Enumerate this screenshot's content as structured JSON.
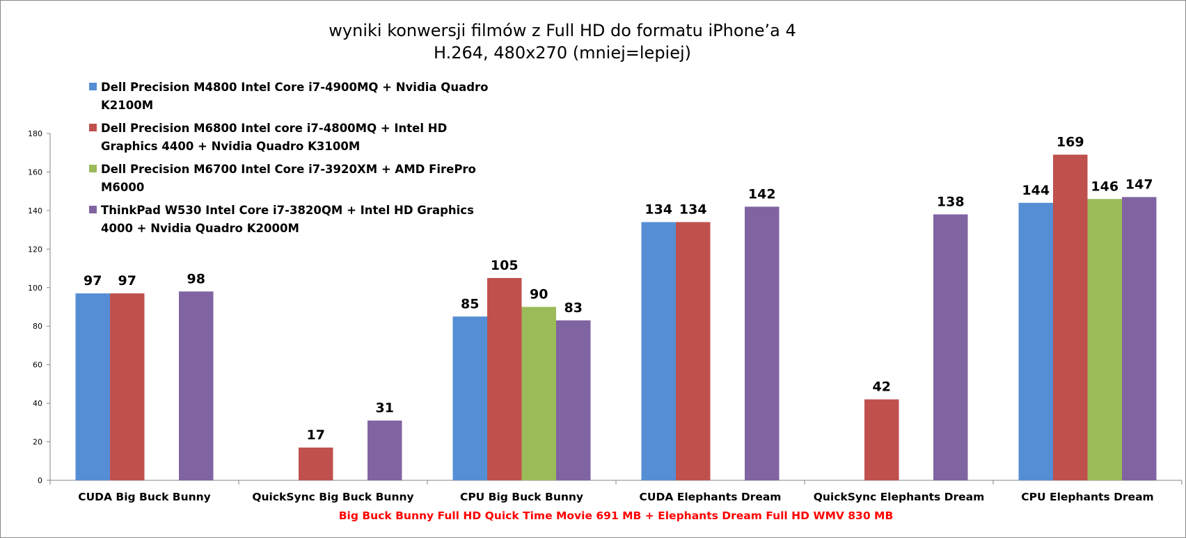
{
  "chart_data": {
    "type": "bar",
    "title": "wyniki konwersji filmów z Full HD do formatu iPhone’a 4",
    "subtitle": "H.264, 480x270 (mniej=lepiej)",
    "categories": [
      "CUDA Big Buck Bunny",
      "QuickSync Big Buck Bunny",
      "CPU Big Buck Bunny",
      "CUDA Elephants Dream",
      "QuickSync Elephants Dream",
      "CPU Elephants Dream"
    ],
    "series": [
      {
        "name": "Dell Precision M4800 Intel Core i7-4900MQ + Nvidia Quadro K2100M",
        "legend_lines": [
          "Dell Precision  M4800 Intel Core i7-4900MQ + Nvidia  Quadro",
          "K2100M"
        ],
        "color": "#558ed5",
        "values": [
          97,
          null,
          85,
          134,
          null,
          144
        ]
      },
      {
        "name": "Dell Precision M6800 Intel core i7-4800MQ + Intel HD Graphics 4400 + Nvidia Quadro K3100M",
        "legend_lines": [
          "Dell Precision  M6800 Intel core i7-4800MQ + Intel HD",
          "Graphics 4400 + Nvidia  Quadro  K3100M"
        ],
        "color": "#c0504d",
        "values": [
          97,
          17,
          105,
          134,
          42,
          169
        ]
      },
      {
        "name": "Dell Precision M6700 Intel Core i7-3920XM + AMD FirePro M6000",
        "legend_lines": [
          "Dell Precision  M6700 Intel Core i7-3920XM + AMD  FirePro",
          "M6000"
        ],
        "color": "#9bbb59",
        "values": [
          null,
          null,
          90,
          null,
          null,
          146
        ]
      },
      {
        "name": "ThinkPad W530 Intel Core i7-3820QM + Intel HD Graphics 4000 + Nvidia Quadro K2000M",
        "legend_lines": [
          "ThinkPad  W530 Intel Core i7-3820QM + Intel HD Graphics",
          "4000 + Nvidia  Quadro  K2000M"
        ],
        "color": "#8064a2",
        "values": [
          98,
          31,
          83,
          142,
          138,
          147
        ]
      }
    ],
    "ylim": [
      0,
      180
    ],
    "yticks": [
      "0",
      "20",
      "40",
      "60",
      "80",
      "100",
      "120",
      "140",
      "160",
      "180"
    ],
    "xlabel": "Big  Buck  Bunny  Full  HD  Quick  Time  Movie  691  MB  + Elephants  Dream  Full  HD  WMV  830  MB",
    "xlabel_color": "#ff0000",
    "ylabel": "",
    "legend_position": "top-left",
    "grid": false
  }
}
